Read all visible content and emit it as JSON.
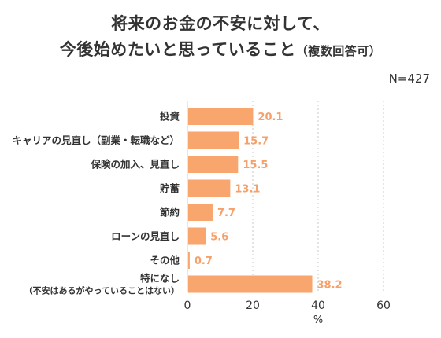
{
  "header": {
    "title_line1": "将来のお金の不安に対して、",
    "title_line2": "今後始めたいと思っていること",
    "title_note": "（複数回答可）",
    "sample": "N=427"
  },
  "chart_data": {
    "type": "bar",
    "orientation": "horizontal",
    "categories": [
      "投資",
      "キャリアの見直し（副業・転職など）",
      "保険の加入、見直し",
      "貯蓄",
      "節約",
      "ローンの見直し",
      "その他",
      "特になし"
    ],
    "category_sublabels": [
      "",
      "",
      "",
      "",
      "",
      "",
      "",
      "（不安はあるがやっていることはない）"
    ],
    "values": [
      20.1,
      15.7,
      15.5,
      13.1,
      7.7,
      5.6,
      0.7,
      38.2
    ],
    "value_labels": [
      "20.1",
      "15.7",
      "15.5",
      "13.1",
      "7.7",
      "5.6",
      "0.7",
      "38.2"
    ],
    "xlabel": "%",
    "xlim": [
      0,
      60
    ],
    "xticks": [
      "0",
      "20",
      "40",
      "60"
    ],
    "grid": true,
    "bar_color": "#f9a66e",
    "label_color": "#f6a06a"
  }
}
